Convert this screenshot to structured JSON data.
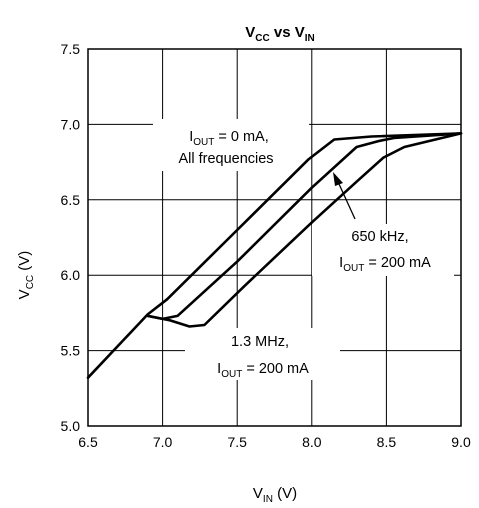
{
  "chart_data": {
    "type": "line",
    "title": {
      "main": "V",
      "sub1": "CC",
      "mid": " vs V",
      "sub2": "IN"
    },
    "xlabel": {
      "main": "V",
      "sub": "IN",
      "unit": " (V)"
    },
    "ylabel": {
      "main": "V",
      "sub": "CC",
      "unit": " (V)"
    },
    "xlim": [
      6.5,
      9.0
    ],
    "ylim": [
      5.0,
      7.5
    ],
    "xticks": [
      "6.5",
      "7.0",
      "7.5",
      "8.0",
      "8.5",
      "9.0"
    ],
    "yticks": [
      "5.0",
      "5.5",
      "6.0",
      "6.5",
      "7.0",
      "7.5"
    ],
    "grid": true,
    "series": [
      {
        "x": [
          6.5,
          6.9,
          7.03,
          7.5,
          7.98,
          8.15,
          8.4,
          9.0
        ],
        "y": [
          5.32,
          5.74,
          5.84,
          6.3,
          6.77,
          6.9,
          6.92,
          6.94
        ]
      },
      {
        "x": [
          6.9,
          7.0,
          7.1,
          7.5,
          8.0,
          8.3,
          8.45,
          8.55,
          9.0
        ],
        "y": [
          5.73,
          5.71,
          5.73,
          6.09,
          6.58,
          6.85,
          6.89,
          6.91,
          6.94
        ]
      },
      {
        "x": [
          6.9,
          7.05,
          7.18,
          7.28,
          7.55,
          8.0,
          8.3,
          8.48,
          8.62,
          9.0
        ],
        "y": [
          5.73,
          5.7,
          5.66,
          5.67,
          5.93,
          6.35,
          6.62,
          6.78,
          6.85,
          6.94
        ]
      }
    ],
    "annotations": [
      {
        "line1_main": "I",
        "line1_sub": "OUT",
        "line1_rest": " = 0 mA,",
        "line2": "All frequencies"
      },
      {
        "line1": "650 kHz,",
        "line2_main": "I",
        "line2_sub": "OUT",
        "line2_rest": " = 200 mA"
      },
      {
        "line1": "1.3 MHz,",
        "line2_main": "I",
        "line2_sub": "OUT",
        "line2_rest": " = 200 mA"
      }
    ]
  }
}
